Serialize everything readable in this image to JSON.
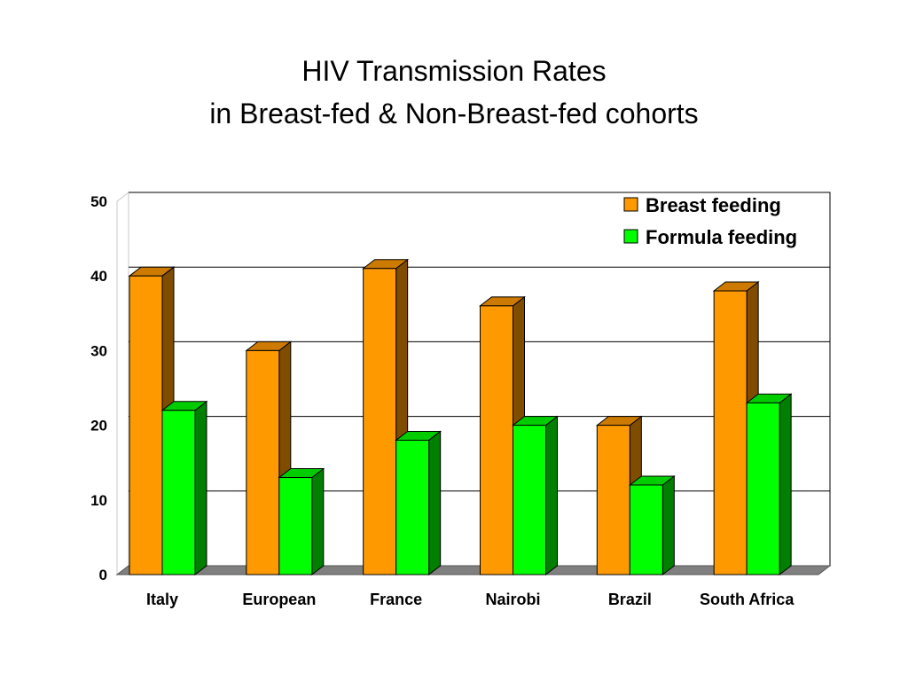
{
  "title_lines": [
    "HIV Transmission Rates",
    "in Breast-fed & Non-Breast-fed cohorts"
  ],
  "colors": {
    "breast_front": "#ff9900",
    "breast_side": "#7f4c00",
    "breast_top": "#cc7a00",
    "formula_front": "#00ff00",
    "formula_side": "#007f00",
    "formula_top": "#00cc00",
    "floor": "#808080",
    "grid": "#000000"
  },
  "chart_data": {
    "type": "bar",
    "title": "HIV Transmission Rates in Breast-fed & Non-Breast-fed cohorts",
    "categories": [
      "Italy",
      "European",
      "France",
      "Nairobi",
      "Brazil",
      "South Africa"
    ],
    "series": [
      {
        "name": "Breast feeding",
        "values": [
          40,
          30,
          41,
          36,
          20,
          38
        ]
      },
      {
        "name": "Formula feeding",
        "values": [
          22,
          13,
          18,
          20,
          12,
          23
        ]
      }
    ],
    "ylim": [
      0,
      50
    ],
    "yticks": [
      "0",
      "10",
      "20",
      "30",
      "40",
      "50"
    ],
    "grid": true,
    "legend_position": "top-right",
    "style": "3d-clustered-column"
  }
}
